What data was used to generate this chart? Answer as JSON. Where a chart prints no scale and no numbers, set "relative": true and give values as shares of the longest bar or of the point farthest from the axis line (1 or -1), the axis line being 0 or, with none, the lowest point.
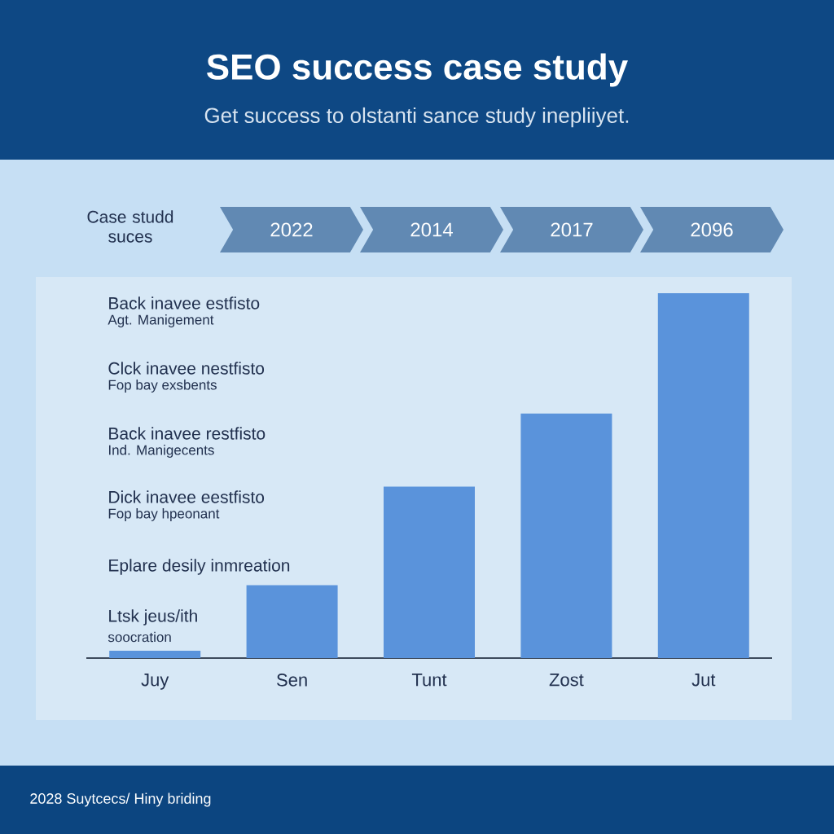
{
  "chart_data": {
    "type": "bar",
    "title": "SEO success case study",
    "subtitle": "Get success to olstanti sance study inepliiyet.",
    "categories": [
      "Juy",
      "Sen",
      "Tunt",
      "Zost",
      "Jut"
    ],
    "values": [
      0.02,
      0.2,
      0.47,
      0.67,
      1
    ],
    "color": "#5a93db",
    "relative": true,
    "annotations": [
      "Case studd suces",
      "2022",
      "2014",
      "2017",
      "2096",
      "Back inavee estfisto",
      "Agt. Manigement",
      "Clck inavee nestfisto",
      "Fop bay exsbents",
      "Back inavee restfisto",
      "Ind. Manigecents",
      "Dick inavee eestfisto",
      "Fop bay hpeonant",
      "Eplare desily inmreation",
      "Ltsk jeus/ith",
      "soocration",
      "2028 Suytcecs/ Hiny briding"
    ]
  }
}
